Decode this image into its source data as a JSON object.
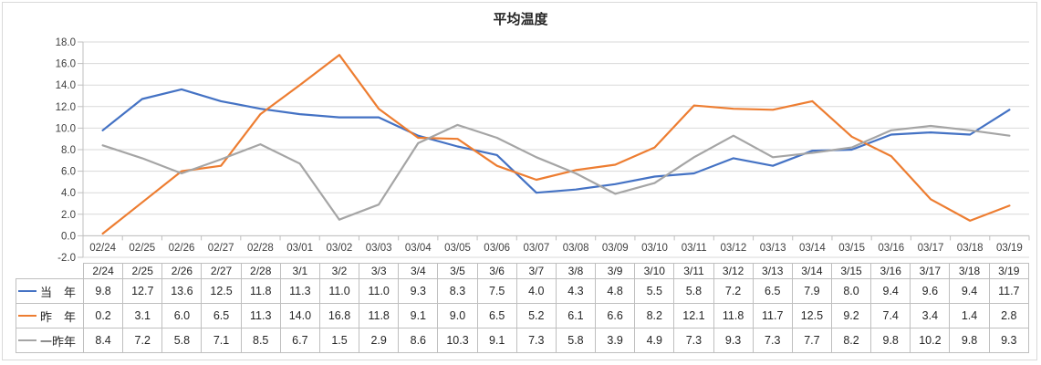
{
  "chart_data": {
    "type": "line",
    "title": "平均温度",
    "categories": [
      "2/24",
      "2/25",
      "2/26",
      "2/27",
      "2/28",
      "3/1",
      "3/2",
      "3/3",
      "3/4",
      "3/5",
      "3/6",
      "3/7",
      "3/8",
      "3/9",
      "3/10",
      "3/11",
      "3/12",
      "3/13",
      "3/14",
      "3/15",
      "3/16",
      "3/17",
      "3/18",
      "3/19"
    ],
    "axis_categories": [
      "02/24",
      "02/25",
      "02/26",
      "02/27",
      "02/28",
      "03/01",
      "03/02",
      "03/03",
      "03/04",
      "03/05",
      "03/06",
      "03/07",
      "03/08",
      "03/09",
      "03/10",
      "03/11",
      "03/12",
      "03/13",
      "03/14",
      "03/15",
      "03/16",
      "03/17",
      "03/18",
      "03/19"
    ],
    "series": [
      {
        "name": "当　年",
        "color": "#4472C4",
        "values": [
          9.8,
          12.7,
          13.6,
          12.5,
          11.8,
          11.3,
          11.0,
          11.0,
          9.3,
          8.3,
          7.5,
          4.0,
          4.3,
          4.8,
          5.5,
          5.8,
          7.2,
          6.5,
          7.9,
          8.0,
          9.4,
          9.6,
          9.4,
          11.7
        ]
      },
      {
        "name": "昨　年",
        "color": "#ED7D31",
        "values": [
          0.2,
          3.1,
          6.0,
          6.5,
          11.3,
          14.0,
          16.8,
          11.8,
          9.1,
          9.0,
          6.5,
          5.2,
          6.1,
          6.6,
          8.2,
          12.1,
          11.8,
          11.7,
          12.5,
          9.2,
          7.4,
          3.4,
          1.4,
          2.8
        ]
      },
      {
        "name": "一昨年",
        "color": "#A5A5A5",
        "values": [
          8.4,
          7.2,
          5.8,
          7.1,
          8.5,
          6.7,
          1.5,
          2.9,
          8.6,
          10.3,
          9.1,
          7.3,
          5.8,
          3.9,
          4.9,
          7.3,
          9.3,
          7.3,
          7.7,
          8.2,
          9.8,
          10.2,
          9.8,
          9.3
        ]
      }
    ],
    "ylim": [
      -2.0,
      18.0
    ],
    "y_ticks": [
      18,
      16,
      14,
      12,
      10,
      8,
      6,
      4,
      2,
      0,
      -2
    ],
    "grid": true,
    "legend_position": "table-left"
  },
  "colors": {
    "gridline": "#D9D9D9",
    "axis": "#BFBFBF",
    "table_border": "#BFBFBF",
    "frame_border": "#D9D9D9",
    "axis_text": "#404040",
    "title_text": "#262626"
  }
}
